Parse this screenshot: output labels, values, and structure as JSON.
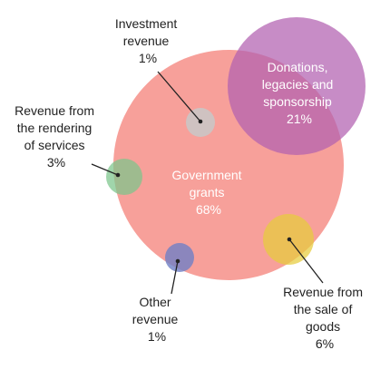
{
  "chart_data": {
    "type": "bubble",
    "title": "",
    "series": [
      {
        "name": "Government grants",
        "percent_label": "68%",
        "value": 68,
        "color": "#f47c73"
      },
      {
        "name": "Donations, legacies and sponsorship",
        "percent_label": "21%",
        "value": 21,
        "color": "#b25fb0"
      },
      {
        "name": "Revenue from the sale of goods",
        "percent_label": "6%",
        "value": 6,
        "color": "#e6cc3c"
      },
      {
        "name": "Revenue from the rendering of services",
        "percent_label": "3%",
        "value": 3,
        "color": "#7cc58a"
      },
      {
        "name": "Investment revenue",
        "percent_label": "1%",
        "value": 1,
        "color": "#c8c8c8"
      },
      {
        "name": "Other revenue",
        "percent_label": "1%",
        "value": 1,
        "color": "#6f7fc6"
      }
    ],
    "labels": {
      "gov": [
        "Government",
        "grants",
        "68%"
      ],
      "don": [
        "Donations,",
        "legacies and",
        "sponsorship",
        "21%"
      ],
      "inv": [
        "Investment",
        "revenue",
        "1%"
      ],
      "serv": [
        "Revenue from",
        "the rendering",
        "of services",
        "3%"
      ],
      "other": [
        "Other",
        "revenue",
        "1%"
      ],
      "goods": [
        "Revenue from",
        "the sale of",
        "goods",
        "6%"
      ]
    }
  }
}
